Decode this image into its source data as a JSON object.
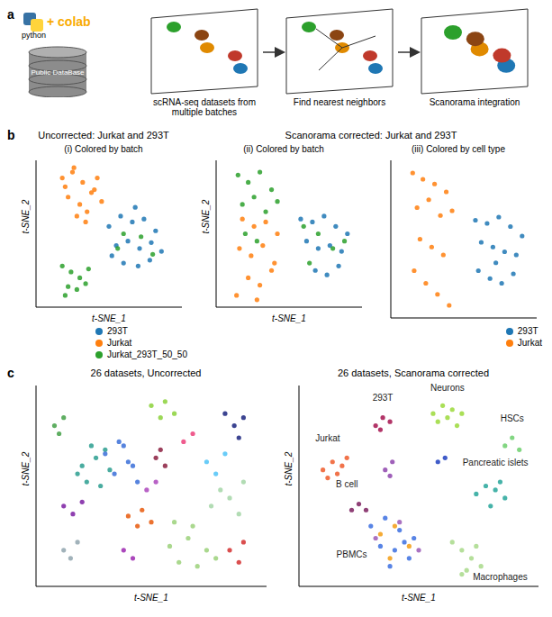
{
  "panel_a": {
    "label": "a",
    "logo_text": "python",
    "colab_text": "+ colab",
    "database": "Public DataBase",
    "steps": [
      "scRNA-seq datasets from multiple batches",
      "Find nearest neighbors",
      "Scanorama integration"
    ]
  },
  "panel_b": {
    "label": "b",
    "corrected_title": "Scanorama corrected: Jurkat and 293T"
  },
  "panel_c": {
    "label": "c"
  },
  "chart_data": [
    {
      "type": "scatter",
      "title": "Uncorrected: Jurkat and 293T",
      "subtitle": "(i) Colored by batch",
      "xlabel": "t-SNE_1",
      "ylabel": "t-SNE_2",
      "tick_labels": false,
      "xlim": [
        0,
        100
      ],
      "ylim": [
        0,
        100
      ],
      "legend": "lower right",
      "series": [
        {
          "name": "293T",
          "color": "#1f77b4",
          "x": [
            50,
            58,
            66,
            74,
            82,
            55,
            63,
            71,
            79,
            86,
            60,
            70,
            78,
            52,
            68
          ],
          "y": [
            55,
            62,
            58,
            60,
            52,
            42,
            45,
            40,
            44,
            38,
            30,
            28,
            32,
            35,
            68
          ]
        },
        {
          "name": "Jurkat",
          "color": "#ff7f0e",
          "x": [
            18,
            25,
            32,
            40,
            22,
            30,
            38,
            45,
            28,
            35,
            20,
            42,
            26,
            34
          ],
          "y": [
            88,
            92,
            85,
            80,
            75,
            70,
            78,
            72,
            62,
            65,
            82,
            88,
            95,
            58
          ]
        },
        {
          "name": "Jurkat_293T_50_50",
          "color": "#2ca02c",
          "x": [
            18,
            24,
            30,
            36,
            22,
            28,
            34,
            20,
            60,
            72,
            80,
            56
          ],
          "y": [
            28,
            24,
            20,
            26,
            14,
            12,
            16,
            8,
            50,
            48,
            36,
            40
          ]
        }
      ]
    },
    {
      "type": "scatter",
      "subtitle": "(ii) Colored by batch",
      "xlabel": "t-SNE_1",
      "ylabel": "t-SNE_2",
      "tick_labels": false,
      "xlim": [
        0,
        100
      ],
      "ylim": [
        0,
        100
      ],
      "series": [
        {
          "color": "#ff7f0e",
          "x": [
            18,
            26,
            34,
            42,
            16,
            24,
            32,
            40,
            22,
            30,
            38,
            14,
            28
          ],
          "y": [
            60,
            55,
            58,
            50,
            40,
            35,
            42,
            30,
            20,
            15,
            25,
            8,
            5
          ]
        },
        {
          "color": "#1f77b4",
          "x": [
            58,
            66,
            74,
            82,
            90,
            62,
            70,
            78,
            86,
            68,
            76,
            84
          ],
          "y": [
            60,
            58,
            62,
            55,
            50,
            45,
            40,
            42,
            38,
            25,
            22,
            28
          ]
        },
        {
          "color": "#2ca02c",
          "x": [
            15,
            22,
            30,
            38,
            18,
            26,
            34,
            42,
            20,
            28,
            60,
            70,
            80,
            88,
            64
          ],
          "y": [
            90,
            85,
            92,
            80,
            70,
            75,
            65,
            72,
            50,
            45,
            55,
            50,
            40,
            45,
            30
          ]
        }
      ]
    },
    {
      "type": "scatter",
      "subtitle": "(iii) Colored by cell type",
      "tick_labels": false,
      "xlim": [
        0,
        100
      ],
      "ylim": [
        0,
        100
      ],
      "legend": "lower right",
      "series": [
        {
          "name": "293T",
          "color": "#1f77b4",
          "x": [
            58,
            66,
            74,
            82,
            90,
            62,
            70,
            78,
            86,
            60,
            68,
            76,
            84,
            72
          ],
          "y": [
            62,
            60,
            64,
            58,
            52,
            48,
            45,
            42,
            40,
            30,
            25,
            22,
            28,
            35
          ]
        },
        {
          "name": "Jurkat",
          "color": "#ff7f0e",
          "x": [
            15,
            22,
            30,
            38,
            18,
            26,
            34,
            42,
            20,
            28,
            36,
            16,
            24,
            32,
            40
          ],
          "y": [
            92,
            88,
            85,
            80,
            70,
            75,
            65,
            68,
            50,
            45,
            40,
            30,
            22,
            15,
            8
          ]
        }
      ]
    },
    {
      "type": "scatter",
      "title": "26 datasets, Uncorrected",
      "xlabel": "t-SNE_1",
      "ylabel": "t-SNE_2",
      "tick_labels": false,
      "xlim": [
        0,
        100
      ],
      "ylim": [
        0,
        100
      ],
      "series": [
        {
          "color": "#2a9d8f",
          "x": [
            20,
            26,
            32,
            22,
            28,
            18,
            30,
            24
          ],
          "y": [
            60,
            64,
            58,
            52,
            50,
            56,
            68,
            70
          ]
        },
        {
          "color": "#3a6fd8",
          "x": [
            30,
            36,
            40,
            34,
            42,
            38,
            44
          ],
          "y": [
            66,
            72,
            62,
            56,
            60,
            70,
            52
          ]
        },
        {
          "color": "#e8590c",
          "x": [
            40,
            46,
            44,
            50
          ],
          "y": [
            35,
            38,
            30,
            32
          ]
        },
        {
          "color": "#9bd17a",
          "x": [
            58,
            66,
            74,
            62,
            70,
            78,
            68,
            60
          ],
          "y": [
            20,
            24,
            18,
            12,
            10,
            14,
            30,
            32
          ]
        },
        {
          "color": "#8bd13a",
          "x": [
            50,
            56,
            60,
            54
          ],
          "y": [
            90,
            92,
            86,
            84
          ]
        },
        {
          "color": "#1a237e",
          "x": [
            82,
            86,
            90,
            88
          ],
          "y": [
            86,
            80,
            84,
            74
          ]
        },
        {
          "color": "#4fc3f7",
          "x": [
            74,
            78,
            82
          ],
          "y": [
            62,
            56,
            66
          ]
        },
        {
          "color": "#a5d6a7",
          "x": [
            76,
            84,
            88,
            80,
            90
          ],
          "y": [
            40,
            44,
            36,
            48,
            52
          ]
        },
        {
          "color": "#7b1fa2",
          "x": [
            12,
            16,
            20
          ],
          "y": [
            40,
            36,
            42
          ]
        },
        {
          "color": "#8b1e3f",
          "x": [
            52,
            56,
            54
          ],
          "y": [
            64,
            60,
            68
          ]
        },
        {
          "color": "#90a4ae",
          "x": [
            12,
            18,
            15
          ],
          "y": [
            18,
            22,
            14
          ]
        },
        {
          "color": "#d32f2f",
          "x": [
            84,
            90,
            88
          ],
          "y": [
            18,
            22,
            12
          ]
        },
        {
          "color": "#9c27b0",
          "x": [
            38,
            42
          ],
          "y": [
            18,
            14
          ]
        },
        {
          "color": "#43a047",
          "x": [
            8,
            12,
            10
          ],
          "y": [
            80,
            84,
            76
          ]
        },
        {
          "color": "#ec407a",
          "x": [
            64,
            68
          ],
          "y": [
            72,
            76
          ]
        },
        {
          "color": "#ab47bc",
          "x": [
            48,
            52
          ],
          "y": [
            48,
            52
          ]
        }
      ]
    },
    {
      "type": "scatter",
      "title": "26 datasets, Scanorama corrected",
      "xlabel": "t-SNE_1",
      "ylabel": "t-SNE_2",
      "tick_labels": false,
      "xlim": [
        0,
        100
      ],
      "ylim": [
        0,
        100
      ],
      "series": [
        {
          "color": "#ef5b2a",
          "x": [
            10,
            14,
            18,
            12,
            16,
            20
          ],
          "y": [
            58,
            62,
            60,
            54,
            56,
            64
          ]
        },
        {
          "color": "#a5124e",
          "x": [
            32,
            35,
            38,
            34
          ],
          "y": [
            80,
            84,
            82,
            78
          ]
        },
        {
          "color": "#9bd93a",
          "x": [
            56,
            60,
            64,
            68,
            58,
            62,
            66
          ],
          "y": [
            86,
            90,
            88,
            86,
            82,
            84,
            80
          ]
        },
        {
          "color": "#6ccf6c",
          "x": [
            86,
            89,
            92
          ],
          "y": [
            70,
            74,
            68
          ]
        },
        {
          "color": "#1f3fbf",
          "x": [
            58,
            61
          ],
          "y": [
            62,
            64
          ]
        },
        {
          "color": "#26a69a",
          "x": [
            74,
            78,
            82,
            86,
            80,
            84
          ],
          "y": [
            46,
            50,
            48,
            44,
            40,
            52
          ]
        },
        {
          "color": "#7b1f5e",
          "x": [
            22,
            25,
            28
          ],
          "y": [
            38,
            41,
            38
          ]
        },
        {
          "color": "#8e44ad",
          "x": [
            36,
            39,
            38
          ],
          "y": [
            58,
            62,
            55
          ]
        },
        {
          "color": "#3b6fe0",
          "x": [
            30,
            36,
            42,
            48,
            34,
            40,
            46,
            38,
            44
          ],
          "y": [
            30,
            34,
            28,
            24,
            20,
            18,
            14,
            10,
            22
          ]
        },
        {
          "color": "#f39c12",
          "x": [
            34,
            40,
            46,
            38
          ],
          "y": [
            26,
            30,
            20,
            14
          ]
        },
        {
          "color": "#9b59b6",
          "x": [
            32,
            42,
            50
          ],
          "y": [
            24,
            32,
            18
          ]
        },
        {
          "color": "#a8d98a",
          "x": [
            64,
            68,
            72,
            76,
            70,
            74,
            68
          ],
          "y": [
            22,
            18,
            14,
            10,
            8,
            20,
            6
          ]
        }
      ],
      "annotations": [
        {
          "text": "Jurkat",
          "x": 12,
          "y": 70
        },
        {
          "text": "293T",
          "x": 35,
          "y": 90
        },
        {
          "text": "Neurons",
          "x": 62,
          "y": 95
        },
        {
          "text": "HSCs",
          "x": 89,
          "y": 80
        },
        {
          "text": "Pancreatic islets",
          "x": 82,
          "y": 58
        },
        {
          "text": "B cell",
          "x": 20,
          "y": 47
        },
        {
          "text": "PBMCs",
          "x": 22,
          "y": 12
        },
        {
          "text": "Macrophages",
          "x": 84,
          "y": 1
        }
      ]
    }
  ]
}
